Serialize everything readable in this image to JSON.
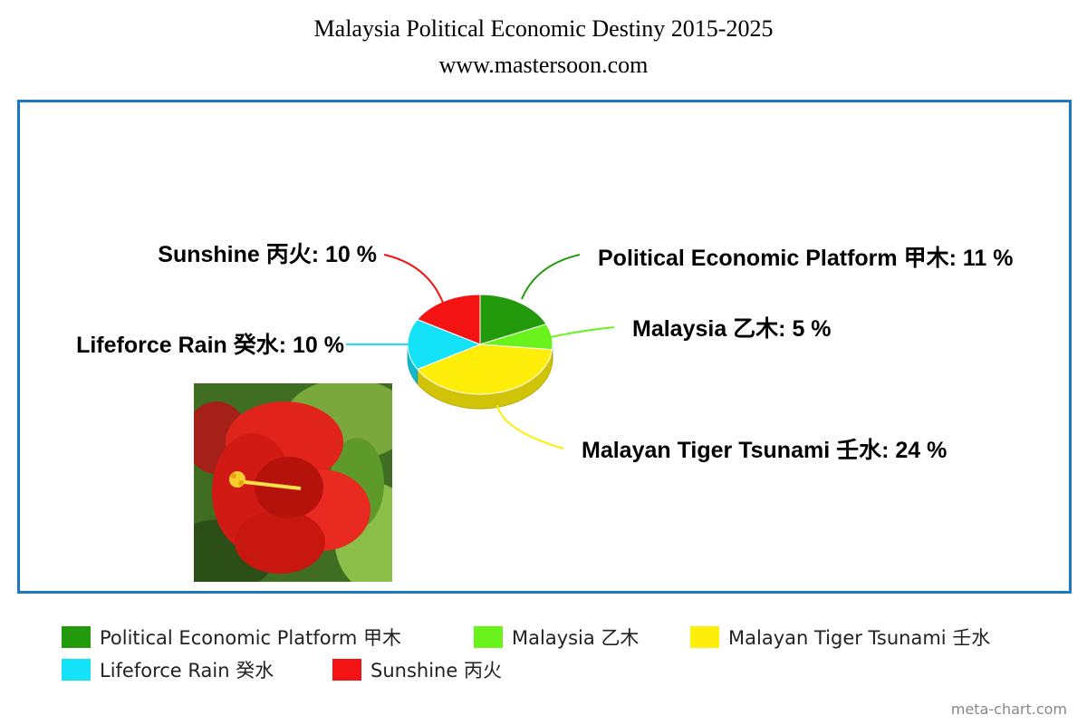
{
  "header": {
    "title": "Malaysia Political Economic Destiny 2015-2025",
    "subtitle": "www.mastersoon.com"
  },
  "footer": {
    "credit": "meta-chart.com"
  },
  "image": {
    "icon": "hibiscus-flower-image"
  },
  "chart_data": {
    "type": "pie",
    "style": "3d",
    "title": "Malaysia Political Economic Destiny 2015-2025",
    "subtitle": "www.mastersoon.com",
    "legend_position": "bottom",
    "slices": [
      {
        "name": "Political Economic Platform 甲木",
        "value": 11,
        "label": "Political Economic Platform 甲木: 11 %",
        "color": "#229a0c"
      },
      {
        "name": "Malaysia 乙木",
        "value": 5,
        "label": "Malaysia 乙木: 5 %",
        "color": "#6af21c"
      },
      {
        "name": "Malayan Tiger Tsunami 壬水",
        "value": 24,
        "label": "Malayan Tiger Tsunami 壬水: 24 %",
        "color": "#ffee0a"
      },
      {
        "name": "Lifeforce Rain 癸水",
        "value": 10,
        "label": "Lifeforce Rain 癸水: 10 %",
        "color": "#14e2f9"
      },
      {
        "name": "Sunshine 丙火",
        "value": 10,
        "label": "Sunshine 丙火: 10 %",
        "color": "#f41313"
      }
    ]
  }
}
